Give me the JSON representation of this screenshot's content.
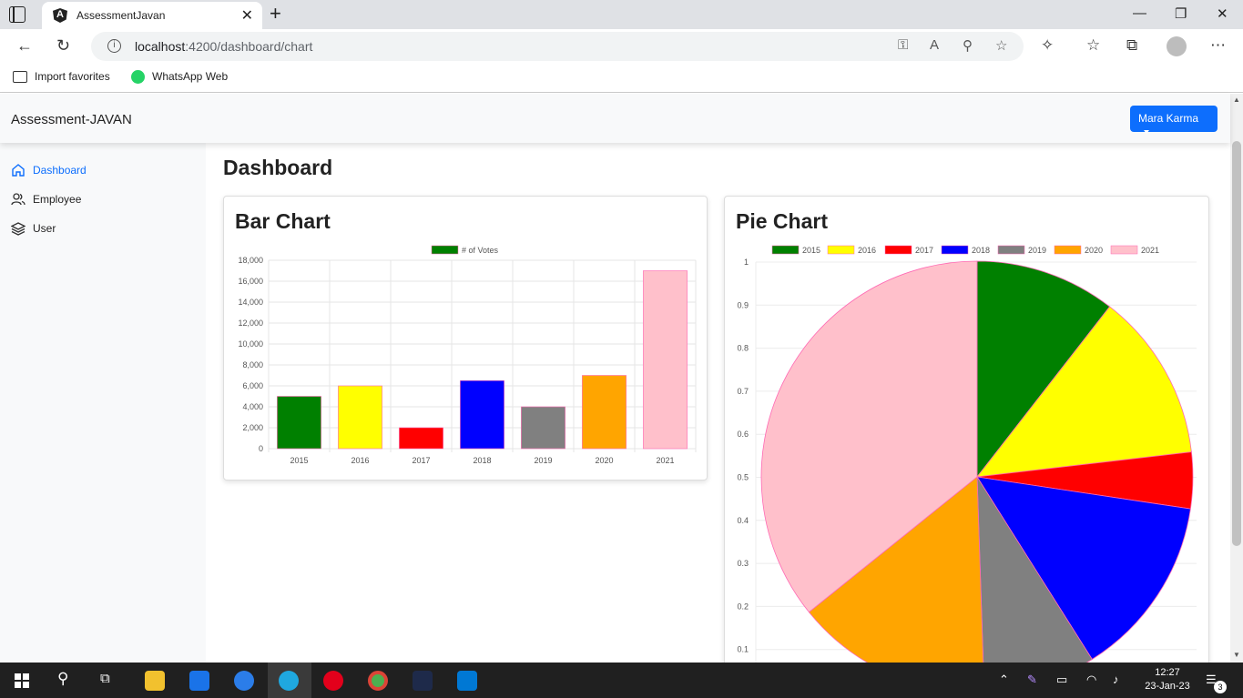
{
  "browser": {
    "tab_title": "AssessmentJavan",
    "url_host": "localhost",
    "url_path": ":4200/dashboard/chart",
    "bookmarks": [
      "Import favorites",
      "WhatsApp Web"
    ]
  },
  "app": {
    "brand": "Assessment-JAVAN",
    "user_button": "Mara Karma",
    "sidebar": [
      {
        "label": "Dashboard",
        "icon": "home-icon",
        "active": true
      },
      {
        "label": "Employee",
        "icon": "users-icon",
        "active": false
      },
      {
        "label": "User",
        "icon": "layers-icon",
        "active": false
      }
    ],
    "page_title": "Dashboard"
  },
  "bar_card_title": "Bar Chart",
  "pie_card_title": "Pie Chart",
  "chart_data": [
    {
      "type": "bar",
      "categories": [
        "2015",
        "2016",
        "2017",
        "2018",
        "2019",
        "2020",
        "2021"
      ],
      "series": [
        {
          "name": "# of Votes",
          "values": [
            5000,
            6000,
            2000,
            6500,
            4000,
            7000,
            17000
          ]
        }
      ],
      "colors": [
        "#008000",
        "#ffff00",
        "#ff0000",
        "#0000ff",
        "#808080",
        "#ffa500",
        "#ffc0cb"
      ],
      "yticks": [
        "0",
        "2,000",
        "4,000",
        "6,000",
        "8,000",
        "10,000",
        "12,000",
        "14,000",
        "16,000",
        "18,000"
      ],
      "ylim": [
        0,
        18000
      ],
      "legend": "top",
      "grid": true
    },
    {
      "type": "pie",
      "categories": [
        "2015",
        "2016",
        "2017",
        "2018",
        "2019",
        "2020",
        "2021"
      ],
      "values": [
        5000,
        6000,
        2000,
        6500,
        4000,
        7000,
        17000
      ],
      "colors": [
        "#008000",
        "#ffff00",
        "#ff0000",
        "#0000ff",
        "#808080",
        "#ffa500",
        "#ffc0cb"
      ],
      "yticks": [
        "0.1",
        "0.2",
        "0.3",
        "0.4",
        "0.5",
        "0.6",
        "0.7",
        "0.8",
        "0.9",
        "1"
      ],
      "legend": "top",
      "grid": true
    }
  ],
  "taskbar": {
    "time": "12:27",
    "date": "23-Jan-23",
    "notifications": "3"
  }
}
